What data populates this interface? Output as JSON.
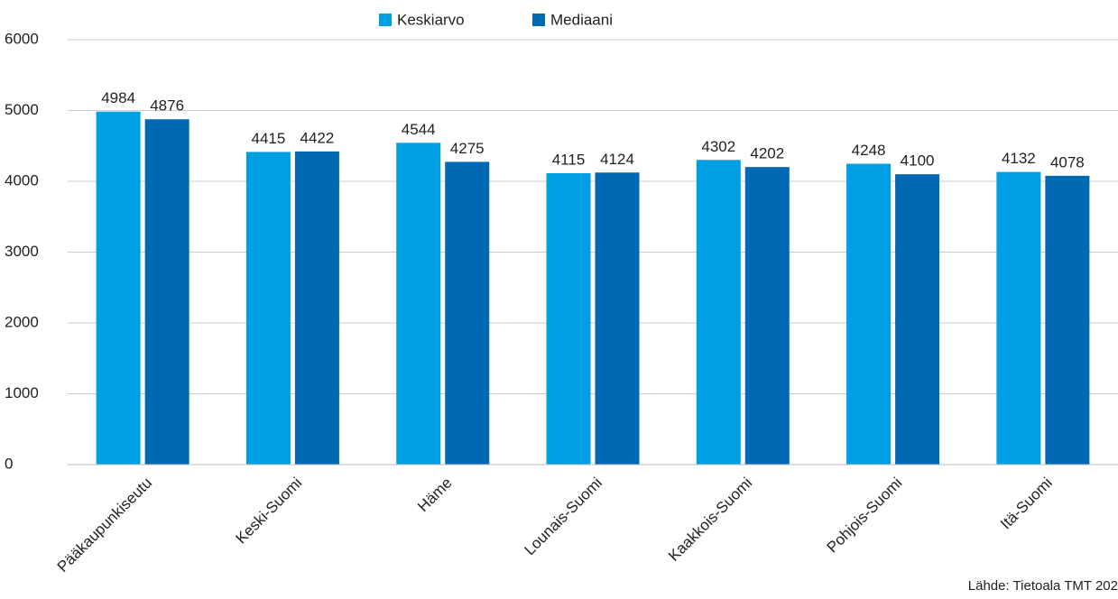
{
  "chart_data": {
    "type": "bar",
    "categories": [
      "Pääkaupunkiseutu",
      "Keski-Suomi",
      "Häme",
      "Lounais-Suomi",
      "Kaakkois-Suomi",
      "Pohjois-Suomi",
      "Itä-Suomi"
    ],
    "series": [
      {
        "name": "Keskiarvo",
        "color": "#009fe3",
        "values": [
          4984,
          4415,
          4544,
          4115,
          4302,
          4248,
          4132
        ]
      },
      {
        "name": "Mediaani",
        "color": "#0069b4",
        "values": [
          4876,
          4422,
          4275,
          4124,
          4202,
          4100,
          4078
        ]
      }
    ],
    "ylim": [
      0,
      6000
    ],
    "yticks": [
      0,
      1000,
      2000,
      3000,
      4000,
      5000,
      6000
    ],
    "grid": true,
    "legend": "top",
    "source": "Lähde: Tietoala TMT 202"
  }
}
